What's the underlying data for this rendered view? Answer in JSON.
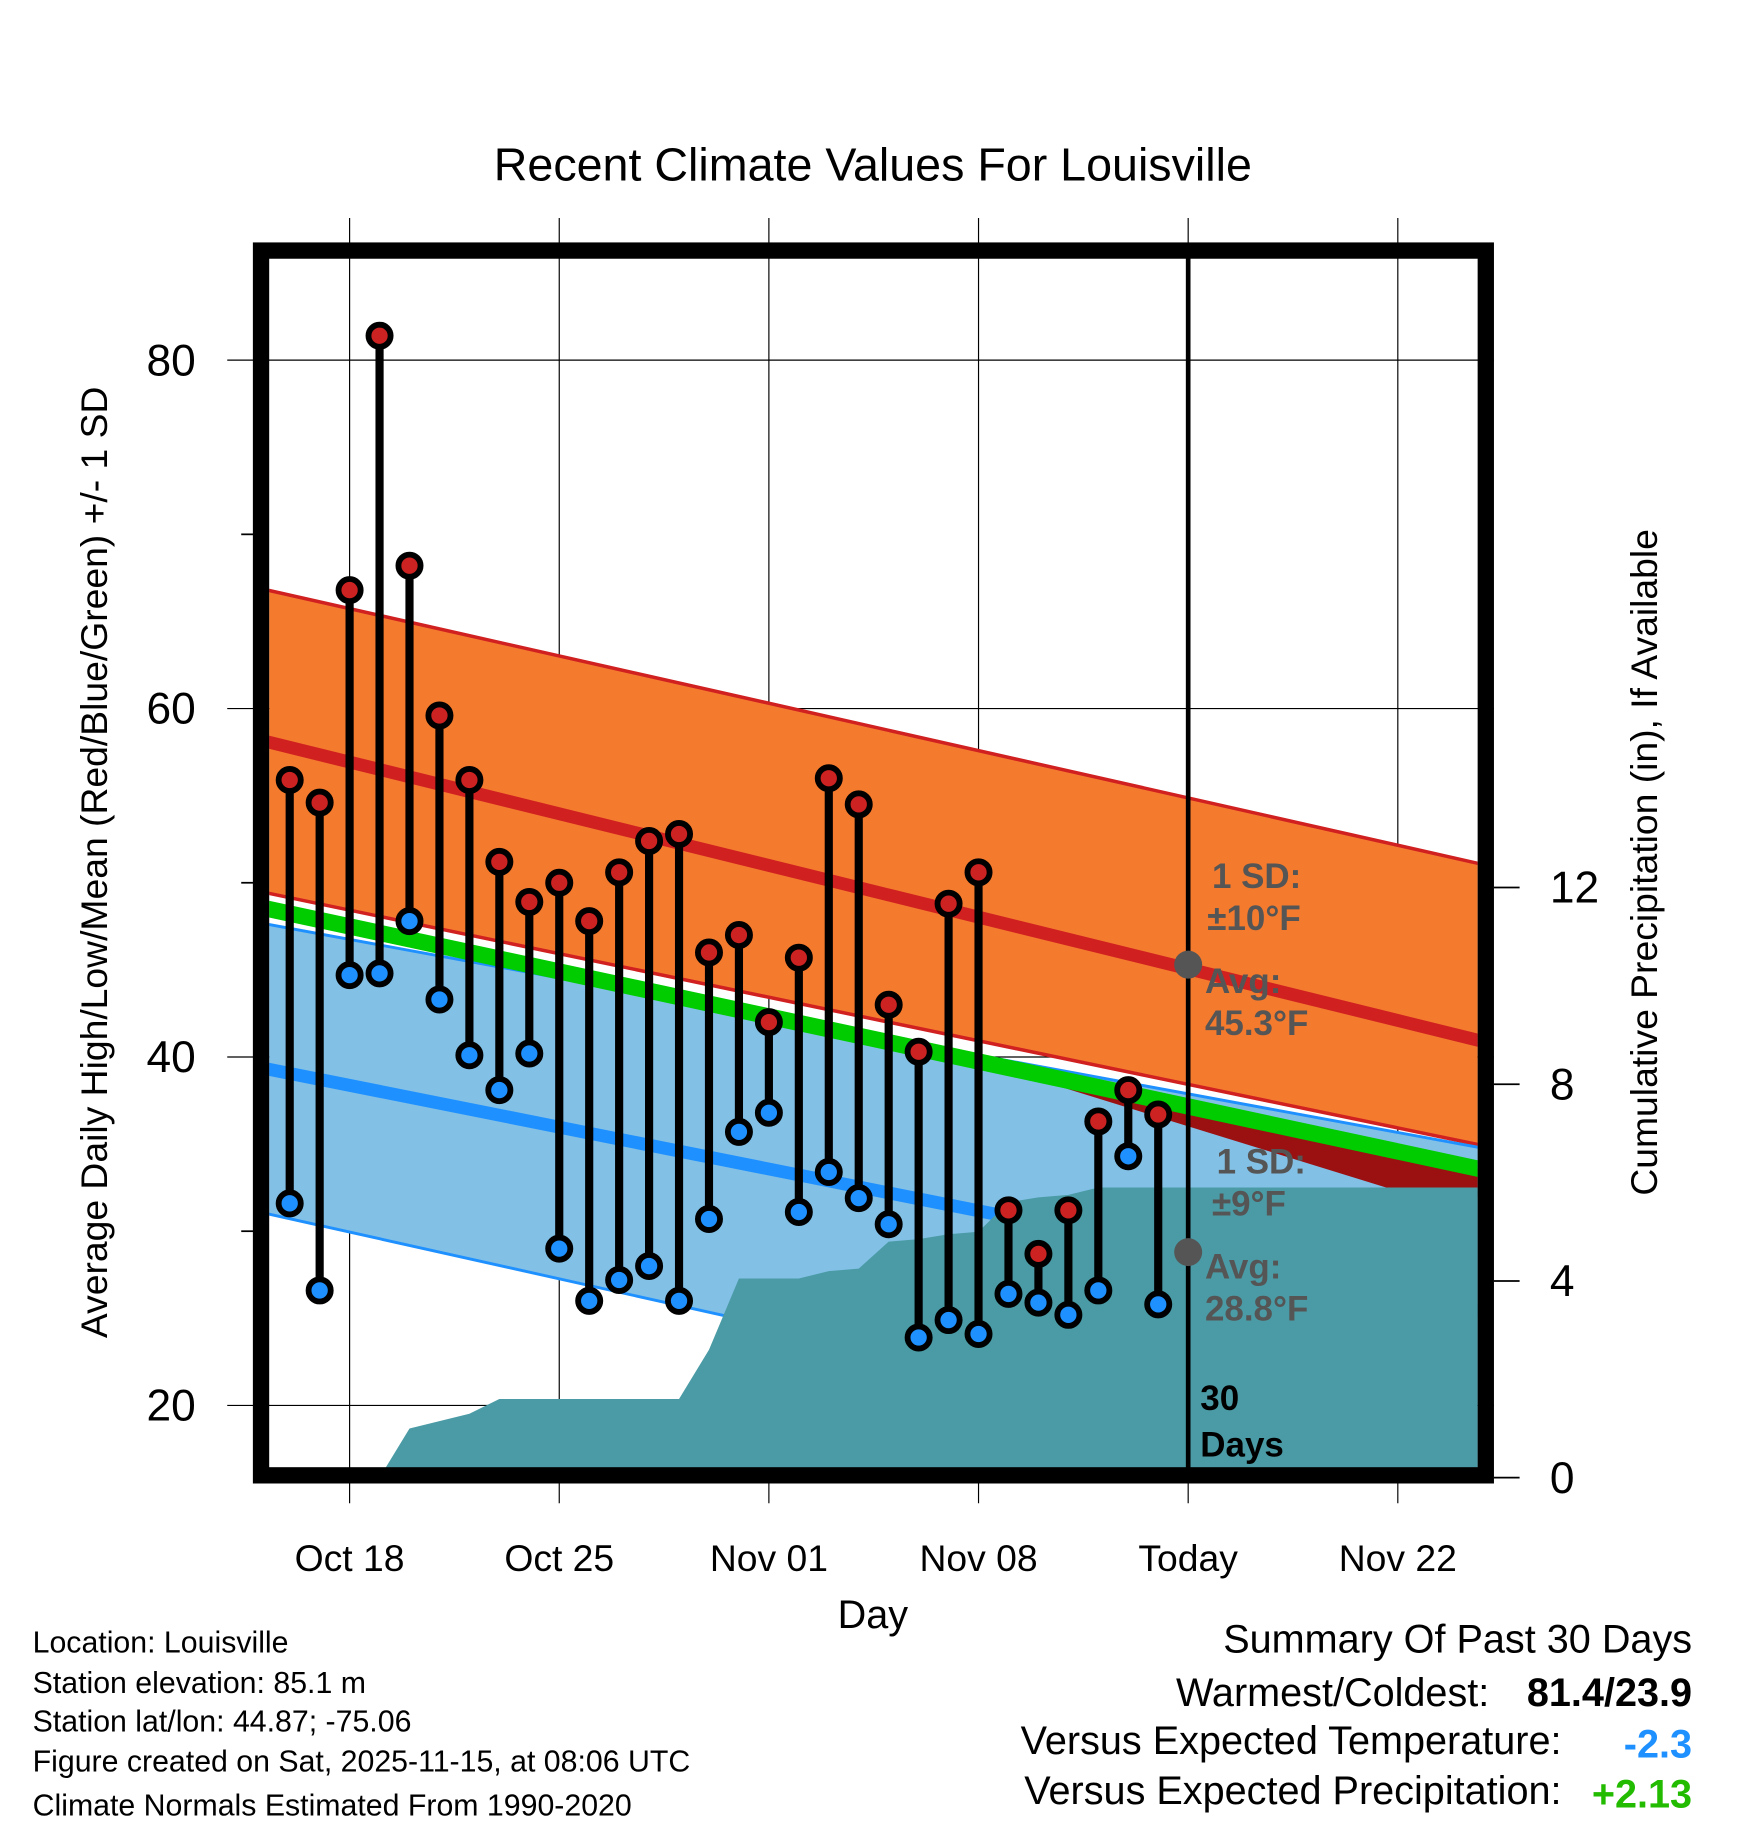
{
  "chart_data": {
    "type": "line",
    "title": "Recent Climate Values For Louisville",
    "xlabel": "Day",
    "ylabel": "Average Daily High/Low/Mean (Red/Blue/Green) +/- 1 SD",
    "y2label": "Cumulative Precipitation (in), If Available",
    "ylim": [
      16.3,
      86.6
    ],
    "y2lim": [
      0,
      24.7
    ],
    "xlim": [
      "Oct 15.3",
      "Nov 25.6"
    ],
    "x_ticks": [
      "Oct 18",
      "Oct 25",
      "Nov 01",
      "Nov 08",
      "Today",
      "Nov 22"
    ],
    "x_tick_days": [
      "Oct 18",
      "Oct 25",
      "Nov 01",
      "Nov 08",
      "Nov 15",
      "Nov 22"
    ],
    "y_ticks": [
      20,
      40,
      60,
      80
    ],
    "y_minor_ticks": [
      30,
      50,
      70
    ],
    "y2_ticks": [
      0,
      4,
      8,
      12
    ],
    "grid": true,
    "today": "Nov 15",
    "days": [
      "Oct 16",
      "Oct 17",
      "Oct 18",
      "Oct 19",
      "Oct 20",
      "Oct 21",
      "Oct 22",
      "Oct 23",
      "Oct 24",
      "Oct 25",
      "Oct 26",
      "Oct 27",
      "Oct 28",
      "Oct 29",
      "Oct 30",
      "Oct 31",
      "Nov 01",
      "Nov 02",
      "Nov 03",
      "Nov 04",
      "Nov 05",
      "Nov 06",
      "Nov 07",
      "Nov 08",
      "Nov 09",
      "Nov 10",
      "Nov 11",
      "Nov 12",
      "Nov 13",
      "Nov 14"
    ],
    "series": [
      {
        "name": "High",
        "color": "#cc2222",
        "values": [
          55.9,
          54.6,
          66.8,
          81.4,
          68.2,
          59.6,
          55.9,
          51.2,
          48.9,
          50.0,
          47.8,
          50.6,
          52.4,
          52.8,
          46.0,
          47.0,
          42.0,
          45.7,
          56.0,
          54.5,
          43.0,
          40.3,
          48.8,
          50.6,
          31.2,
          28.7,
          31.2,
          36.3,
          38.1,
          36.7
        ]
      },
      {
        "name": "Low",
        "color": "#1e90ff",
        "values": [
          31.6,
          26.6,
          44.7,
          44.8,
          47.8,
          43.3,
          40.1,
          38.1,
          40.2,
          29.0,
          26.0,
          27.2,
          28.0,
          26.0,
          30.7,
          35.7,
          36.8,
          31.1,
          33.4,
          31.9,
          30.4,
          23.9,
          24.9,
          24.1,
          26.4,
          25.9,
          25.2,
          26.6,
          34.3,
          25.8
        ]
      },
      {
        "name": "Cumulative Precipitation",
        "axis": "right",
        "color": "#4a9ba5",
        "days": [
          "Oct 19",
          "Oct 20",
          "Oct 21",
          "Oct 22",
          "Oct 23",
          "Oct 29",
          "Oct 30",
          "Oct 31",
          "Nov 02",
          "Nov 03",
          "Nov 04",
          "Nov 05",
          "Nov 06",
          "Nov 07",
          "Nov 08",
          "Nov 09",
          "Nov 10",
          "Nov 11",
          "Nov 12",
          "Nov 26"
        ],
        "values": [
          0,
          1.0,
          1.15,
          1.3,
          1.6,
          1.6,
          2.6,
          4.05,
          4.05,
          4.2,
          4.25,
          4.8,
          4.85,
          4.95,
          5.0,
          5.6,
          5.7,
          5.75,
          5.9,
          5.9
        ]
      }
    ],
    "normals": {
      "endpoints": [
        "Oct 15",
        "Nov 26"
      ],
      "high_mean": [
        58.2,
        40.4
      ],
      "high_plus_sd": [
        66.9,
        50.6
      ],
      "high_minus_sd": [
        49.5,
        34.5
      ],
      "low_mean": [
        39.4,
        25.0
      ],
      "low_plus_sd": [
        47.7,
        34.4
      ],
      "low_minus_sd": [
        31.1,
        15.0
      ],
      "mean": [
        48.6,
        33.1
      ]
    },
    "annotations": {
      "high_sd_label": "1 SD:",
      "high_sd_value": "±10°F",
      "high_avg_label": "Avg:",
      "high_avg_value": "45.3°F",
      "high_avg": 45.3,
      "low_sd_label": "1 SD:",
      "low_sd_value": "±9°F",
      "low_avg_label": "Avg:",
      "low_avg_value": "28.8°F",
      "low_avg": 28.8,
      "days_num": "30",
      "days_word": "Days"
    },
    "colors": {
      "high_band": "#f47a2e",
      "high_line": "#d02020",
      "low_band": "#82c0e6",
      "low_line": "#1e90ff",
      "mean_line": "#00cc00",
      "overlap": "#9b1010",
      "precip": "#4a9ba5"
    }
  },
  "info": {
    "location": "Location: Louisville",
    "elevation": "Station elevation: 85.1 m",
    "latlon": "Station lat/lon: 44.87; -75.06",
    "created": "Figure created on Sat, 2025-11-15, at 08:06 UTC",
    "normals": "Climate Normals Estimated From 1990-2020"
  },
  "summary": {
    "title": "Summary Of Past 30 Days",
    "warmest_label": "Warmest/Coldest:",
    "warmest_value": "81.4/23.9",
    "temp_label": "Versus Expected Temperature:",
    "temp_value": "-2.3",
    "temp_color": "#1e90ff",
    "precip_label": "Versus Expected Precipitation:",
    "precip_value": "+2.13",
    "precip_color": "#22bb00"
  }
}
